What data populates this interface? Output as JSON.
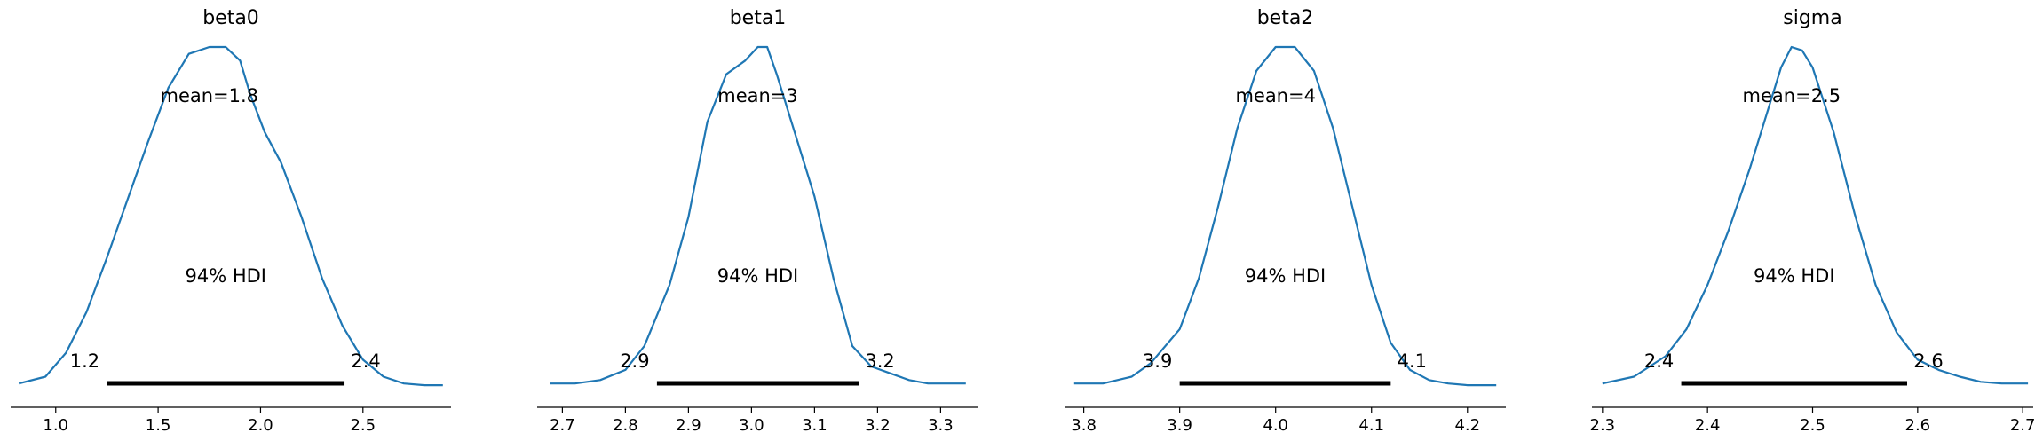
{
  "colors": {
    "curve": "#1f77b4",
    "hdi_bar": "#000000",
    "axis": "#000000"
  },
  "chart_data": [
    {
      "type": "line",
      "title": "beta0",
      "mean_label": "mean=1.8",
      "hdi_label": "94% HDI",
      "hdi_low": 1.25,
      "hdi_high": 2.41,
      "hdi_low_label": "1.2",
      "hdi_high_label": "2.4",
      "xlim": [
        0.78,
        2.93
      ],
      "xticks": [
        1.0,
        1.5,
        2.0,
        2.5
      ],
      "xtick_labels": [
        "1.0",
        "1.5",
        "2.0",
        "2.5"
      ],
      "x": [
        0.82,
        0.95,
        1.05,
        1.15,
        1.25,
        1.35,
        1.45,
        1.55,
        1.65,
        1.75,
        1.83,
        1.9,
        1.95,
        2.02,
        2.1,
        2.2,
        2.3,
        2.4,
        2.5,
        2.6,
        2.7,
        2.8,
        2.89
      ],
      "y": [
        0.01,
        0.03,
        0.1,
        0.22,
        0.38,
        0.55,
        0.72,
        0.88,
        0.98,
        1.0,
        1.0,
        0.96,
        0.86,
        0.75,
        0.66,
        0.5,
        0.32,
        0.18,
        0.08,
        0.03,
        0.01,
        0.005,
        0.005
      ]
    },
    {
      "type": "line",
      "title": "beta1",
      "mean_label": "mean=3",
      "hdi_label": "94% HDI",
      "hdi_low": 2.85,
      "hdi_high": 3.17,
      "hdi_low_label": "2.9",
      "hdi_high_label": "3.2",
      "xlim": [
        2.66,
        3.36
      ],
      "xticks": [
        2.7,
        2.8,
        2.9,
        3.0,
        3.1,
        3.2,
        3.3
      ],
      "xtick_labels": [
        "2.7",
        "2.8",
        "2.9",
        "3.0",
        "3.1",
        "3.2",
        "3.3"
      ],
      "x": [
        2.68,
        2.72,
        2.76,
        2.8,
        2.83,
        2.87,
        2.9,
        2.93,
        2.96,
        2.99,
        3.01,
        3.025,
        3.04,
        3.07,
        3.1,
        3.13,
        3.16,
        3.19,
        3.22,
        3.25,
        3.28,
        3.31,
        3.34
      ],
      "y": [
        0.01,
        0.01,
        0.02,
        0.05,
        0.12,
        0.3,
        0.5,
        0.78,
        0.92,
        0.96,
        1.0,
        1.0,
        0.92,
        0.74,
        0.56,
        0.32,
        0.12,
        0.06,
        0.04,
        0.02,
        0.01,
        0.01,
        0.01
      ]
    },
    {
      "type": "line",
      "title": "beta2",
      "mean_label": "mean=4",
      "hdi_label": "94% HDI",
      "hdi_low": 3.9,
      "hdi_high": 4.12,
      "hdi_low_label": "3.9",
      "hdi_high_label": "4.1",
      "xlim": [
        3.78,
        4.24
      ],
      "xticks": [
        3.8,
        3.9,
        4.0,
        4.1,
        4.2
      ],
      "xtick_labels": [
        "3.8",
        "3.9",
        "4.0",
        "4.1",
        "4.2"
      ],
      "x": [
        3.79,
        3.82,
        3.85,
        3.87,
        3.9,
        3.92,
        3.94,
        3.96,
        3.98,
        4.0,
        4.02,
        4.04,
        4.06,
        4.08,
        4.1,
        4.12,
        4.14,
        4.16,
        4.18,
        4.2,
        4.23
      ],
      "y": [
        0.01,
        0.01,
        0.03,
        0.07,
        0.17,
        0.32,
        0.53,
        0.76,
        0.93,
        1.0,
        1.0,
        0.93,
        0.76,
        0.53,
        0.3,
        0.13,
        0.05,
        0.02,
        0.01,
        0.005,
        0.005
      ]
    },
    {
      "type": "line",
      "title": "sigma",
      "mean_label": "mean=2.5",
      "hdi_label": "94% HDI",
      "hdi_low": 2.375,
      "hdi_high": 2.59,
      "hdi_low_label": "2.4",
      "hdi_high_label": "2.6",
      "xlim": [
        2.29,
        2.71
      ],
      "xticks": [
        2.3,
        2.4,
        2.5,
        2.6,
        2.7
      ],
      "xtick_labels": [
        "2.3",
        "2.4",
        "2.5",
        "2.6",
        "2.7"
      ],
      "x": [
        2.3,
        2.33,
        2.36,
        2.38,
        2.4,
        2.42,
        2.44,
        2.46,
        2.47,
        2.48,
        2.49,
        2.5,
        2.52,
        2.54,
        2.56,
        2.58,
        2.6,
        2.62,
        2.64,
        2.66,
        2.68,
        2.705
      ],
      "y": [
        0.01,
        0.03,
        0.09,
        0.17,
        0.3,
        0.46,
        0.64,
        0.84,
        0.94,
        1.0,
        0.99,
        0.94,
        0.75,
        0.51,
        0.3,
        0.16,
        0.08,
        0.05,
        0.03,
        0.015,
        0.01,
        0.01
      ]
    }
  ]
}
